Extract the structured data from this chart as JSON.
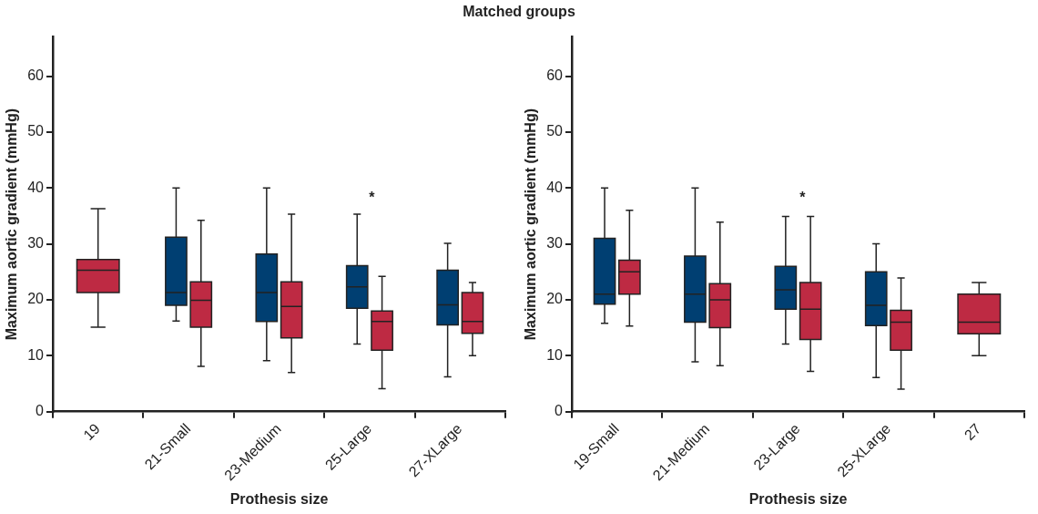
{
  "chart_data": [
    {
      "type": "box",
      "title": "Matched groups",
      "xlabel": "Prothesis size",
      "ylabel": "Maximum aortic gradient (mmHg)",
      "categories": [
        "19",
        "21-Small",
        "23-Medium",
        "25-Large",
        "27-XLarge"
      ],
      "ylim": [
        0,
        67
      ],
      "yticks": [
        0,
        10,
        20,
        30,
        40,
        50,
        60
      ],
      "series": [
        {
          "color": "#003f72",
          "boxes": [
            null,
            {
              "low": 16.2,
              "q1": 19,
              "median": 21.3,
              "q3": 31.2,
              "high": 40
            },
            {
              "low": 9.1,
              "q1": 16.1,
              "median": 21.3,
              "q3": 28.2,
              "high": 40
            },
            {
              "low": 12.1,
              "q1": 18.5,
              "median": 22.3,
              "q3": 26.1,
              "high": 35.3
            },
            {
              "low": 6.2,
              "q1": 15.5,
              "median": 19.1,
              "q3": 25.3,
              "high": 30.1
            }
          ]
        },
        {
          "color": "#be2a43",
          "boxes": [
            {
              "low": 15.1,
              "q1": 21.3,
              "median": 25.3,
              "q3": 27.2,
              "high": 36.3
            },
            {
              "low": 8.1,
              "q1": 15.1,
              "median": 19.9,
              "q3": 23.2,
              "high": 34.2
            },
            {
              "low": 7,
              "q1": 13.2,
              "median": 18.8,
              "q3": 23.2,
              "high": 35.3
            },
            {
              "low": 4.1,
              "q1": 11,
              "median": 16.1,
              "q3": 18,
              "high": 24.2
            },
            {
              "low": 10,
              "q1": 14,
              "median": 16.1,
              "q3": 21.3,
              "high": 23.1
            }
          ]
        }
      ],
      "annotations": [
        "*"
      ]
    },
    {
      "type": "box",
      "xlabel": "Prothesis size",
      "ylabel": "Maximum aortic gradient (mmHg)",
      "categories": [
        "19-Small",
        "21-Medium",
        "23-Large",
        "25-XLarge",
        "27"
      ],
      "ylim": [
        0,
        67
      ],
      "yticks": [
        0,
        10,
        20,
        30,
        40,
        50,
        60
      ],
      "series": [
        {
          "color": "#003f72",
          "boxes": [
            {
              "low": 15.8,
              "q1": 19.2,
              "median": 21,
              "q3": 31,
              "high": 40
            },
            {
              "low": 8.9,
              "q1": 16,
              "median": 21,
              "q3": 27.8,
              "high": 40
            },
            {
              "low": 12.1,
              "q1": 18.3,
              "median": 21.8,
              "q3": 26,
              "high": 34.9
            },
            {
              "low": 6.1,
              "q1": 15.4,
              "median": 19,
              "q3": 25,
              "high": 30
            },
            null
          ]
        },
        {
          "color": "#be2a43",
          "boxes": [
            {
              "low": 15.3,
              "q1": 21,
              "median": 25,
              "q3": 27.1,
              "high": 36
            },
            {
              "low": 8.2,
              "q1": 15,
              "median": 20,
              "q3": 22.9,
              "high": 33.9
            },
            {
              "low": 7.2,
              "q1": 12.9,
              "median": 18.3,
              "q3": 23.1,
              "high": 34.9
            },
            {
              "low": 4,
              "q1": 11,
              "median": 16,
              "q3": 18.1,
              "high": 23.9
            },
            {
              "low": 10,
              "q1": 13.9,
              "median": 16,
              "q3": 21,
              "high": 23.1
            }
          ]
        }
      ],
      "annotations": [
        "*"
      ]
    }
  ]
}
